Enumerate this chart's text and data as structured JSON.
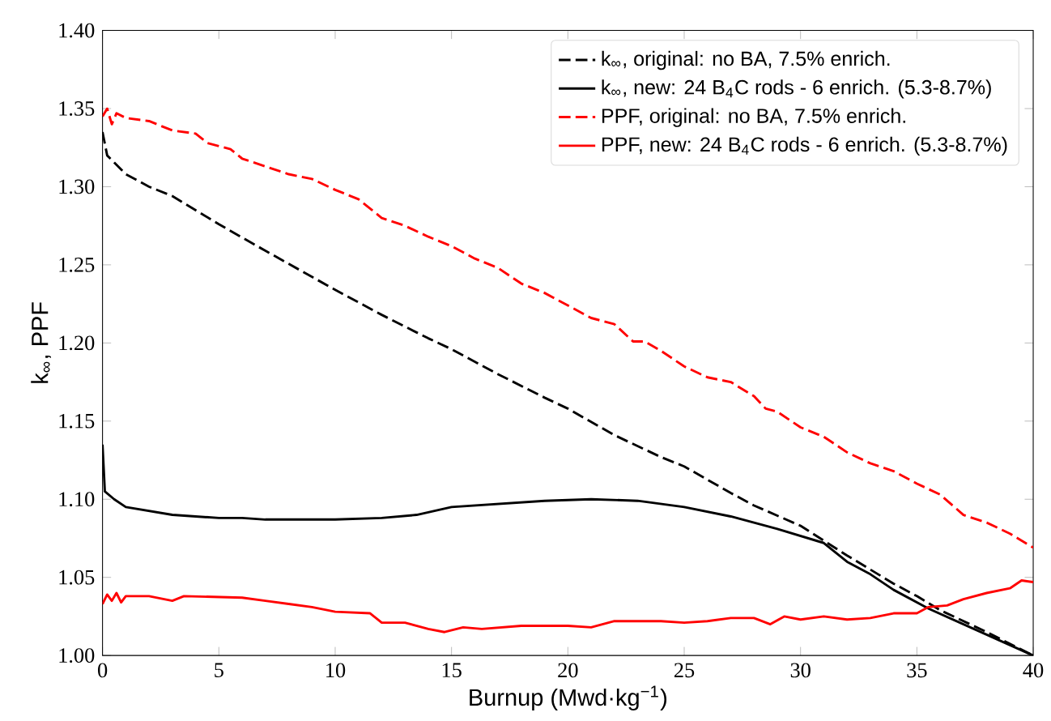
{
  "chart_data": {
    "type": "line",
    "xlabel": "Burnup (Mwd·kg$^{−1}$)",
    "ylabel": "k$_{∞}$, PPF",
    "xlim": [
      0,
      40
    ],
    "ylim": [
      1.0,
      1.4
    ],
    "xticks": [
      0,
      5,
      10,
      15,
      20,
      25,
      30,
      35,
      40
    ],
    "yticks": [
      {
        "value": 1.0,
        "label": "1.00"
      },
      {
        "value": 1.05,
        "label": "1.05"
      },
      {
        "value": 1.1,
        "label": "1.10"
      },
      {
        "value": 1.15,
        "label": "1.15"
      },
      {
        "value": 1.2,
        "label": "1.20"
      },
      {
        "value": 1.25,
        "label": "1.25"
      },
      {
        "value": 1.3,
        "label": "1.30"
      },
      {
        "value": 1.35,
        "label": "1.35"
      },
      {
        "value": 1.4,
        "label": "1.40"
      }
    ],
    "legend": "top right",
    "grid": false,
    "marker": "none",
    "series": [
      {
        "name": "k$_{∞}$, original: no BA, 7.5% enrich.",
        "color": "#000000",
        "line_style": "dashed",
        "x": [
          0,
          0.2,
          1,
          2,
          3,
          5,
          7,
          10,
          12,
          14,
          15,
          17,
          19,
          20,
          22,
          24,
          25,
          27,
          28,
          30,
          32,
          34,
          35,
          36,
          38,
          40
        ],
        "values": [
          1.335,
          1.32,
          1.308,
          1.3,
          1.294,
          1.276,
          1.259,
          1.234,
          1.218,
          1.203,
          1.196,
          1.18,
          1.165,
          1.158,
          1.141,
          1.127,
          1.121,
          1.104,
          1.096,
          1.083,
          1.064,
          1.046,
          1.038,
          1.029,
          1.015,
          1.0
        ]
      },
      {
        "name": "k$_{∞}$, new: 24 B$_{4}$C rods - 6 enrich. (5.3-8.7%)",
        "color": "#000000",
        "line_style": "solid",
        "x": [
          0,
          0.1,
          0.5,
          1,
          3,
          5,
          6,
          7,
          8,
          10,
          12,
          13.5,
          15,
          17,
          19,
          21,
          23,
          25,
          27,
          29,
          31,
          32,
          33,
          34,
          35.5,
          37,
          38.5,
          40
        ],
        "values": [
          1.135,
          1.105,
          1.1,
          1.095,
          1.09,
          1.088,
          1.088,
          1.087,
          1.087,
          1.087,
          1.088,
          1.09,
          1.095,
          1.097,
          1.099,
          1.1,
          1.099,
          1.095,
          1.089,
          1.081,
          1.072,
          1.06,
          1.052,
          1.042,
          1.03,
          1.02,
          1.01,
          1.0
        ]
      },
      {
        "name": "PPF, original: no BA, 7.5% enrich.",
        "color": "#ff0000",
        "line_style": "dashed",
        "x": [
          0,
          0.2,
          0.4,
          0.6,
          1,
          2,
          3,
          4,
          4.5,
          5.5,
          6,
          7,
          8,
          9,
          10,
          11,
          12,
          13,
          14,
          15,
          16,
          17,
          18,
          19,
          20,
          21,
          22,
          22.8,
          23.3,
          24,
          25,
          26,
          27,
          28,
          28.5,
          29,
          30,
          31,
          32,
          33,
          34,
          35,
          36,
          37,
          38,
          39,
          40
        ],
        "values": [
          1.345,
          1.35,
          1.34,
          1.347,
          1.344,
          1.342,
          1.336,
          1.334,
          1.328,
          1.324,
          1.318,
          1.313,
          1.308,
          1.305,
          1.298,
          1.292,
          1.28,
          1.275,
          1.268,
          1.262,
          1.254,
          1.248,
          1.238,
          1.232,
          1.224,
          1.216,
          1.212,
          1.201,
          1.201,
          1.195,
          1.185,
          1.178,
          1.175,
          1.166,
          1.158,
          1.156,
          1.146,
          1.14,
          1.13,
          1.123,
          1.118,
          1.11,
          1.103,
          1.09,
          1.085,
          1.078,
          1.069
        ]
      },
      {
        "name": "PPF, new: 24 B$_{4}$C rods - 6 enrich. (5.3-8.7%)",
        "color": "#ff0000",
        "line_style": "solid",
        "x": [
          0,
          0.2,
          0.4,
          0.6,
          0.8,
          1,
          2,
          3,
          3.5,
          6,
          7,
          8,
          9,
          10,
          11.5,
          12,
          13,
          14,
          14.7,
          15.5,
          16.3,
          18,
          19,
          20,
          21,
          22,
          23,
          24,
          25,
          26,
          27,
          28,
          28.7,
          29.3,
          30,
          31,
          32,
          33,
          34,
          35,
          35.5,
          36.3,
          37,
          38,
          39,
          39.5,
          40
        ],
        "values": [
          1.033,
          1.039,
          1.035,
          1.04,
          1.034,
          1.038,
          1.038,
          1.035,
          1.038,
          1.037,
          1.035,
          1.033,
          1.031,
          1.028,
          1.027,
          1.021,
          1.021,
          1.017,
          1.015,
          1.018,
          1.017,
          1.019,
          1.019,
          1.019,
          1.018,
          1.022,
          1.022,
          1.022,
          1.021,
          1.022,
          1.024,
          1.024,
          1.02,
          1.025,
          1.023,
          1.025,
          1.023,
          1.024,
          1.027,
          1.027,
          1.031,
          1.032,
          1.036,
          1.04,
          1.043,
          1.048,
          1.047
        ]
      }
    ]
  }
}
